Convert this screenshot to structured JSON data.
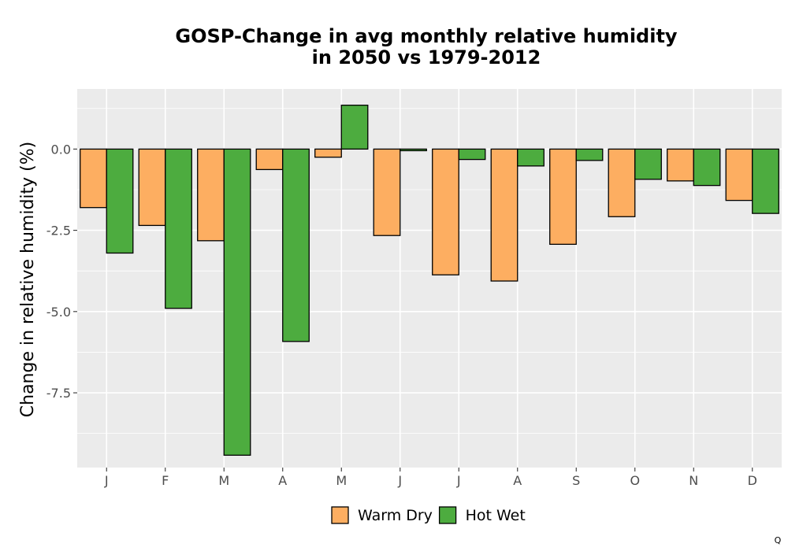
{
  "chart_data": {
    "type": "bar",
    "title_line1": "GOSP-Change in avg monthly relative humidity",
    "title_line2": "in 2050 vs 1979-2012",
    "xlabel": "",
    "ylabel": "Change in relative humidity (%)",
    "categories": [
      "J",
      "F",
      "M",
      "A",
      "M",
      "J",
      "J",
      "A",
      "S",
      "O",
      "N",
      "D"
    ],
    "series": [
      {
        "name": "Warm Dry",
        "color": "#FDAE61",
        "values": [
          -1.8,
          -2.35,
          -2.82,
          -0.63,
          -0.25,
          -2.66,
          -3.87,
          -4.06,
          -2.93,
          -2.08,
          -0.98,
          -1.58
        ]
      },
      {
        "name": "Hot Wet",
        "color": "#4DAC3F",
        "values": [
          -3.2,
          -4.9,
          -9.42,
          -5.92,
          1.35,
          -0.05,
          -0.32,
          -0.52,
          -0.35,
          -0.93,
          -1.12,
          -1.98
        ]
      }
    ],
    "ylim": [
      -9.8,
      1.85
    ],
    "yticks": [
      0.0,
      -2.5,
      -5.0,
      -7.5
    ],
    "ytick_labels": [
      "0.0",
      "-2.5",
      "-5.0",
      "-7.5"
    ],
    "grid": true,
    "legend_position": "bottom",
    "colors": {
      "panel": "#EBEBEB",
      "grid": "#FFFFFF",
      "bar_border": "#000000",
      "tick_text": "#4D4D4D"
    }
  },
  "corner_mark": "Q"
}
